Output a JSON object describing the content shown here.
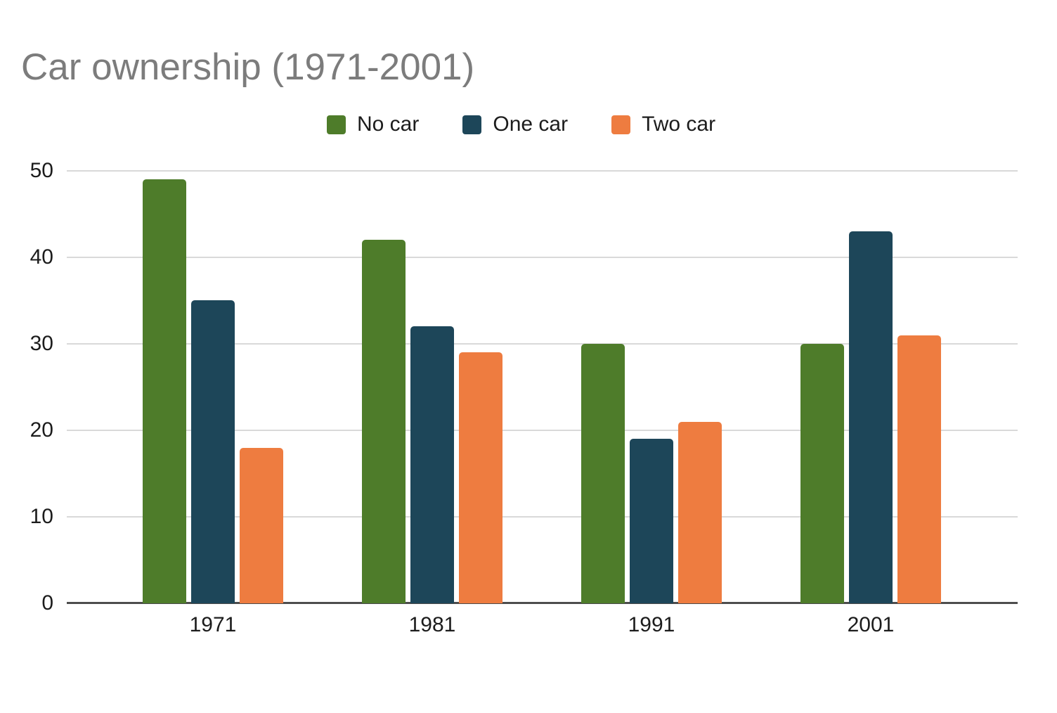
{
  "title": "Car ownership (1971-2001)",
  "chart_data": {
    "type": "bar",
    "title": "Car ownership (1971-2001)",
    "categories": [
      "1971",
      "1981",
      "1991",
      "2001"
    ],
    "series": [
      {
        "name": "No car",
        "color": "#4e7c2a",
        "values": [
          49,
          42,
          30,
          30
        ]
      },
      {
        "name": "One car",
        "color": "#1d4659",
        "values": [
          35,
          32,
          19,
          43
        ]
      },
      {
        "name": "Two car",
        "color": "#ee7c40",
        "values": [
          18,
          29,
          21,
          31
        ]
      }
    ],
    "xlabel": "",
    "ylabel": "",
    "ylim": [
      0,
      50
    ],
    "yticks": [
      0,
      10,
      20,
      30,
      40,
      50
    ],
    "grid": true,
    "legend_position": "top"
  },
  "axis": {
    "yticks_display": [
      "50",
      "40",
      "30",
      "20",
      "10",
      "0"
    ]
  },
  "colors": {
    "title_text": "#7c7c7c",
    "axis_text": "#1c1c1c",
    "gridline": "#d9d9d9",
    "baseline": "#4d4d4d",
    "background": "#ffffff"
  }
}
